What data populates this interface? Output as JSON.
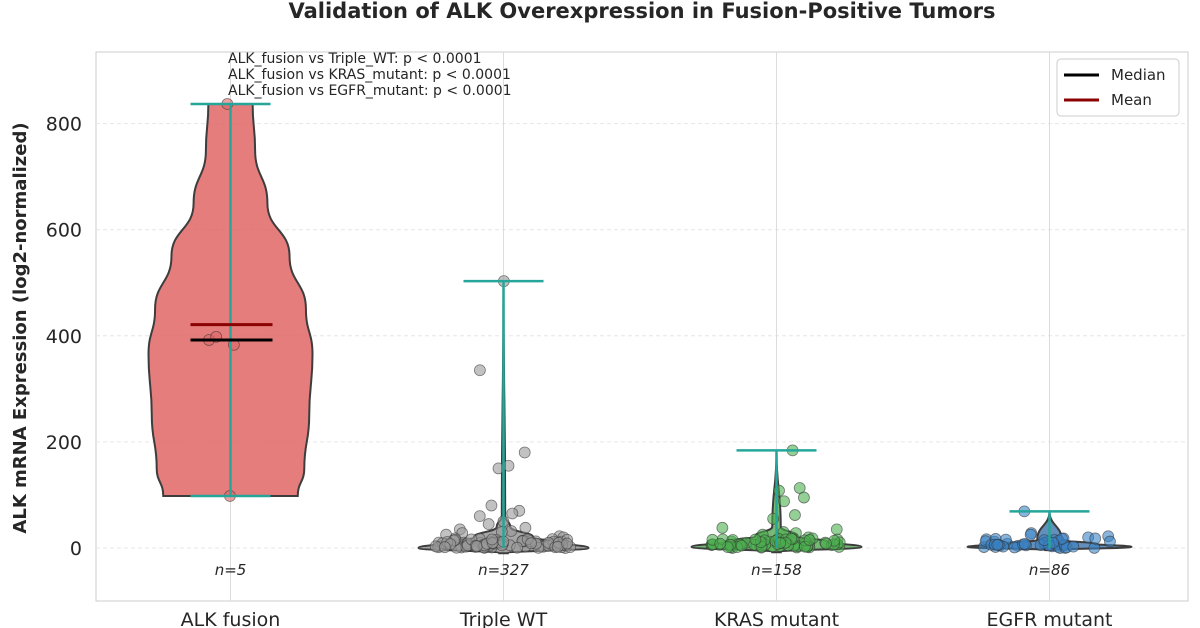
{
  "chart_data": {
    "type": "violin",
    "title": "Validation of ALK Overexpression in Fusion-Positive Tumors",
    "xlabel": "",
    "ylabel": "ALK mRNA Expression (log2-normalized)",
    "ylim": [
      -100,
      935
    ],
    "yticks": [
      0,
      200,
      400,
      600,
      800
    ],
    "ytick_labels": [
      "0",
      "200",
      "400",
      "600",
      "800"
    ],
    "grid": true,
    "legend": {
      "position": "top-right",
      "entries": [
        {
          "label": "Median",
          "color": "#000000"
        },
        {
          "label": "Mean",
          "color": "#8b0000"
        }
      ]
    },
    "annotations": [
      "ALK_fusion vs Triple_WT: p < 0.0001",
      "ALK_fusion vs KRAS_mutant: p < 0.0001",
      "ALK_fusion vs EGFR_mutant: p < 0.0001"
    ],
    "whisker_color": "#26a69a",
    "groups": [
      {
        "name": "ALK fusion",
        "n": 5,
        "n_label": "n=5",
        "color": "#e06666",
        "point_color": "#e06666",
        "min": 98,
        "max": 837,
        "median": 392,
        "mean": 421,
        "points": [
          98,
          383,
          392,
          398,
          837
        ],
        "violin_profile": [
          [
            98,
            0.82
          ],
          [
            150,
            0.9
          ],
          [
            250,
            0.96
          ],
          [
            365,
            1.0
          ],
          [
            450,
            0.92
          ],
          [
            550,
            0.72
          ],
          [
            650,
            0.45
          ],
          [
            750,
            0.3
          ],
          [
            837,
            0.27
          ]
        ]
      },
      {
        "name": "Triple WT",
        "n": 327,
        "n_label": "n=327",
        "color": "#808080",
        "point_color": "#999999",
        "min": 0,
        "max": 503,
        "median": 7,
        "mean": 15,
        "points": [
          503,
          335,
          180,
          155,
          150,
          80,
          70,
          65,
          60,
          50,
          45,
          38,
          35,
          32,
          30,
          28,
          25,
          22,
          20,
          18,
          15,
          12,
          10,
          8,
          5,
          3,
          2,
          1,
          0
        ],
        "violin_profile": [
          [
            -10,
            0.05
          ],
          [
            0,
            1.0
          ],
          [
            10,
            0.7
          ],
          [
            20,
            0.35
          ],
          [
            40,
            0.08
          ],
          [
            60,
            0.02
          ],
          [
            503,
            0.0
          ]
        ]
      },
      {
        "name": "KRAS mutant",
        "n": 158,
        "n_label": "n=158",
        "color": "#3a9e3a",
        "point_color": "#4caf50",
        "min": 0,
        "max": 184,
        "median": 6,
        "mean": 12,
        "points": [
          184,
          113,
          108,
          95,
          88,
          62,
          55,
          38,
          35,
          30,
          28,
          25,
          20,
          18,
          15,
          12,
          10,
          8,
          6,
          5,
          3,
          2,
          1,
          0
        ],
        "violin_profile": [
          [
            -8,
            0.05
          ],
          [
            2,
            1.0
          ],
          [
            12,
            0.6
          ],
          [
            22,
            0.25
          ],
          [
            40,
            0.05
          ],
          [
            184,
            0.0
          ]
        ]
      },
      {
        "name": "EGFR mutant",
        "n": 86,
        "n_label": "n=86",
        "color": "#1f5fa0",
        "point_color": "#3b82c4",
        "min": 0,
        "max": 69,
        "median": 4,
        "mean": 7,
        "points": [
          69,
          28,
          25,
          22,
          20,
          18,
          15,
          12,
          10,
          8,
          6,
          5,
          4,
          3,
          2,
          1,
          0
        ],
        "violin_profile": [
          [
            -4,
            0.05
          ],
          [
            2,
            1.0
          ],
          [
            8,
            0.55
          ],
          [
            15,
            0.15
          ],
          [
            69,
            0.0
          ]
        ]
      }
    ]
  }
}
